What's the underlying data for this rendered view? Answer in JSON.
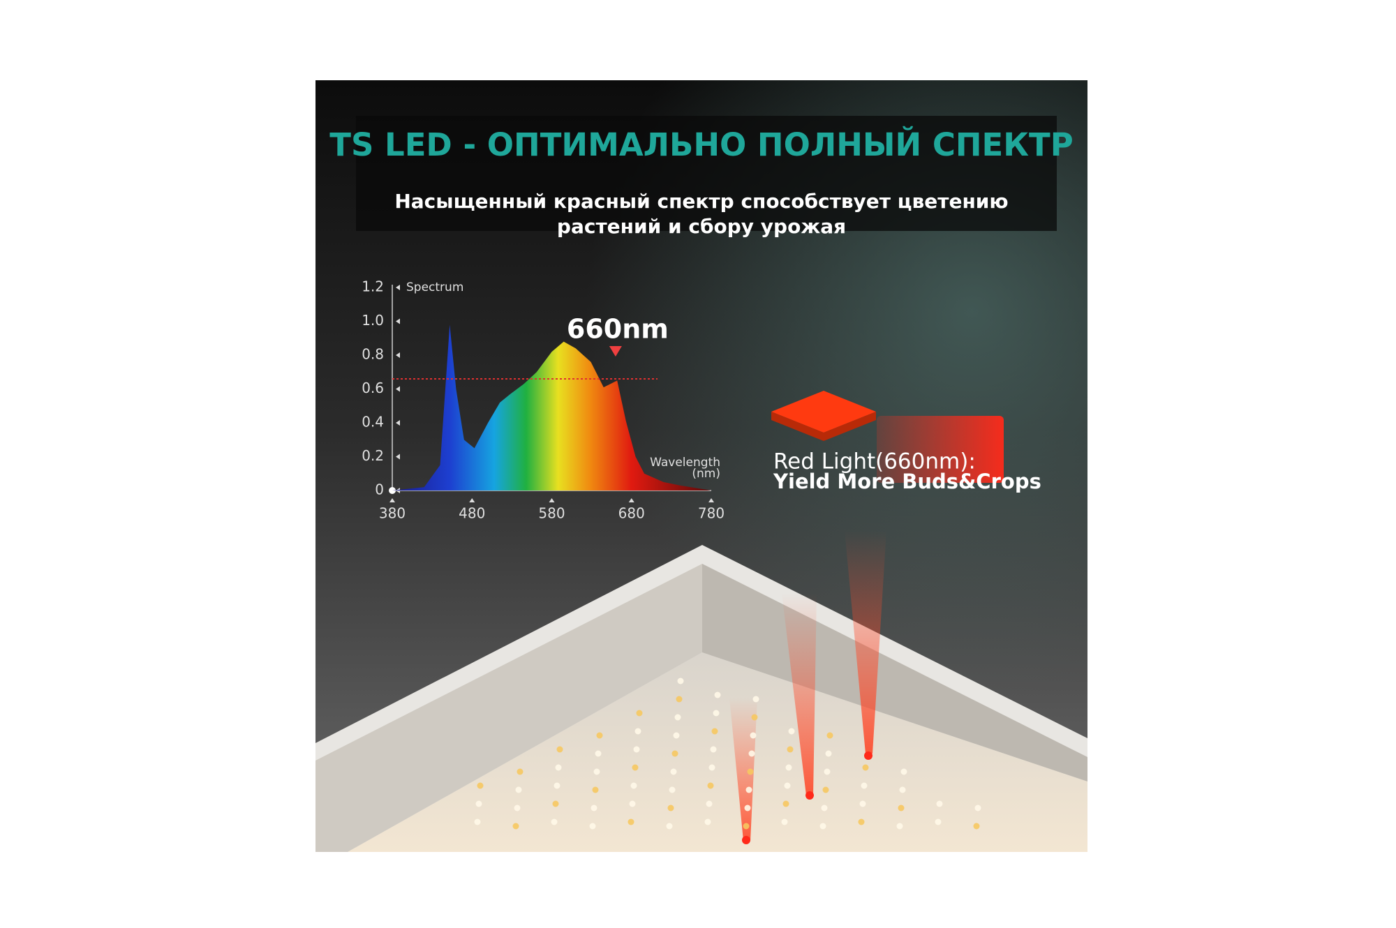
{
  "header": {
    "title": "TS LED - ОПТИМАЛЬНО ПОЛНЫЙ СПЕКТР",
    "subtitle_lines": [
      "Насыщенный красный спектр способствует цветению",
      "растений и сбору урожая"
    ]
  },
  "chart_data": {
    "type": "area",
    "y_label": "Spectrum",
    "x_label": "Wavelength",
    "x_unit_label": "(nm)",
    "annotation": "660nm",
    "annotation_x": 660,
    "reference_line": 0.66,
    "x": [
      380,
      420,
      440,
      445,
      452,
      460,
      470,
      483,
      500,
      515,
      528,
      545,
      561,
      580,
      595,
      610,
      629,
      645,
      662,
      673,
      685,
      696,
      720,
      741,
      780
    ],
    "values": [
      0,
      0.02,
      0.15,
      0.5,
      0.98,
      0.6,
      0.3,
      0.25,
      0.4,
      0.52,
      0.57,
      0.63,
      0.7,
      0.82,
      0.88,
      0.84,
      0.76,
      0.61,
      0.65,
      0.41,
      0.2,
      0.1,
      0.05,
      0.03,
      0
    ],
    "xlim": [
      380,
      780
    ],
    "xticks": [
      380,
      480,
      580,
      680,
      780
    ],
    "ylim": [
      0,
      1.2
    ],
    "yticks": [
      0,
      0.2,
      0.4,
      0.6,
      0.8,
      {
        "value": 1,
        "label": "1.0"
      },
      1.2
    ]
  },
  "callout": {
    "line1": "Red Light(660nm):",
    "line2": "Yield More Buds&Crops"
  }
}
